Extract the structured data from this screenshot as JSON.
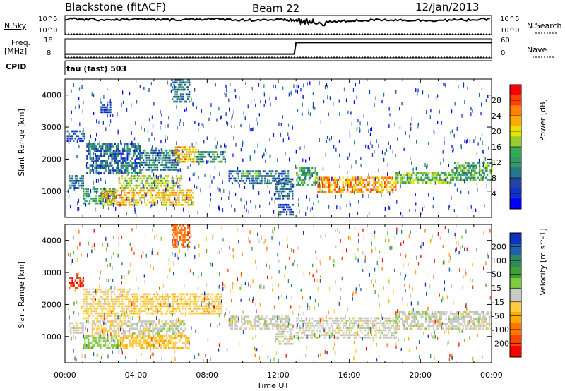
{
  "header": {
    "station": "Blackstone (fitACF)",
    "beam": "Beam 22",
    "date": "12/Jan/2013"
  },
  "sky_panel": {
    "left_label": "N.Sky",
    "right_label": "N.Search",
    "tick_top": "10^5",
    "tick_bottom": "10^0"
  },
  "freq_panel": {
    "left_label": "Freq.",
    "left_unit": "[MHz]",
    "right_label": "Nave",
    "left_ticks": [
      "18",
      "8"
    ],
    "right_ticks": [
      "60",
      "0"
    ]
  },
  "cpid": {
    "label": "CPID",
    "value": "tau (fast) 503"
  },
  "x_axis": {
    "label": "Time UT",
    "ticks": [
      "00:00",
      "04:00",
      "08:00",
      "12:00",
      "16:00",
      "20:00",
      "00:00"
    ]
  },
  "colorbars": {
    "power": {
      "label": "Power [dB]",
      "ticks": [
        "28",
        "24",
        "20",
        "16",
        "12",
        "8",
        "4"
      ],
      "colors": [
        "#ff0000",
        "#ff4000",
        "#ff8000",
        "#ffaa00",
        "#e8e000",
        "#99cc33",
        "#33aa55",
        "#339966",
        "#227788",
        "#2244aa",
        "#1133cc",
        "#0000ff"
      ]
    },
    "velocity": {
      "label": "Velocity [m s^-1]",
      "ticks": [
        "200",
        "100",
        "50",
        "15",
        "-15",
        "-50",
        "-100",
        "-200"
      ],
      "colors": [
        "#1030c0",
        "#2060b0",
        "#308860",
        "#40a030",
        "#80cc40",
        "#c8c8c8",
        "#ffcc44",
        "#ffaa00",
        "#ff7700",
        "#ff4400",
        "#ff0000"
      ]
    }
  },
  "chart_data": [
    {
      "type": "heatmap",
      "title": "Power",
      "xlabel": "Time UT",
      "ylabel": "Slant Range [km]",
      "xlim": [
        0,
        24
      ],
      "ylim": [
        180,
        4500
      ],
      "yticks": [
        1000,
        2000,
        3000,
        4000
      ],
      "colorbar_label": "Power [dB]",
      "colorbar_range": [
        0,
        32
      ],
      "regions": [
        {
          "t0": 0.2,
          "t1": 1.0,
          "r0": 1100,
          "r1": 1500,
          "v": 9
        },
        {
          "t0": 0.1,
          "t1": 1.1,
          "r0": 2550,
          "r1": 2900,
          "v": 6
        },
        {
          "t0": 1.0,
          "t1": 2.8,
          "r0": 650,
          "r1": 1100,
          "v": 12
        },
        {
          "t0": 2.0,
          "t1": 7.2,
          "r0": 600,
          "r1": 1050,
          "v": 22
        },
        {
          "t0": 3.0,
          "t1": 6.5,
          "r0": 1100,
          "r1": 1500,
          "v": 18
        },
        {
          "t0": 1.2,
          "t1": 4.2,
          "r0": 1550,
          "r1": 2500,
          "v": 9
        },
        {
          "t0": 4.2,
          "t1": 6.4,
          "r0": 1700,
          "r1": 2300,
          "v": 10
        },
        {
          "t0": 6.1,
          "t1": 7.4,
          "r0": 1900,
          "r1": 2400,
          "v": 22
        },
        {
          "t0": 7.4,
          "t1": 9.0,
          "r0": 1900,
          "r1": 2250,
          "v": 12
        },
        {
          "t0": 9.2,
          "t1": 12.6,
          "r0": 1250,
          "r1": 1650,
          "v": 9
        },
        {
          "t0": 10.0,
          "t1": 11.0,
          "r0": 1450,
          "r1": 1650,
          "v": 14
        },
        {
          "t0": 11.8,
          "t1": 12.8,
          "r0": 800,
          "r1": 1400,
          "v": 9
        },
        {
          "t0": 12.0,
          "t1": 12.8,
          "r0": 300,
          "r1": 600,
          "v": 6
        },
        {
          "t0": 13.0,
          "t1": 14.2,
          "r0": 1200,
          "r1": 1750,
          "v": 14
        },
        {
          "t0": 14.2,
          "t1": 18.6,
          "r0": 1000,
          "r1": 1450,
          "v": 24
        },
        {
          "t0": 18.6,
          "t1": 21.8,
          "r0": 1250,
          "r1": 1600,
          "v": 16
        },
        {
          "t0": 21.8,
          "t1": 24.0,
          "r0": 1350,
          "r1": 1900,
          "v": 14
        },
        {
          "t0": 6.0,
          "t1": 7.0,
          "r0": 3800,
          "r1": 4500,
          "v": 10
        },
        {
          "t0": 2.0,
          "t1": 2.6,
          "r0": 3500,
          "r1": 3800,
          "v": 6
        }
      ]
    },
    {
      "type": "heatmap",
      "title": "Velocity",
      "xlabel": "Time UT",
      "ylabel": "Slant Range [km]",
      "xlim": [
        0,
        24
      ],
      "ylim": [
        180,
        4500
      ],
      "yticks": [
        1000,
        2000,
        3000,
        4000
      ],
      "colorbar_label": "Velocity [m s^-1]",
      "colorbar_range": [
        -250,
        250
      ],
      "regions": [
        {
          "t0": 0.2,
          "t1": 1.0,
          "r0": 1150,
          "r1": 1450,
          "v": 0
        },
        {
          "t0": 0.2,
          "t1": 1.0,
          "r0": 2550,
          "r1": 2850,
          "v": -200
        },
        {
          "t0": 1.0,
          "t1": 3.0,
          "r0": 650,
          "r1": 1050,
          "v": 40
        },
        {
          "t0": 3.0,
          "t1": 7.0,
          "r0": 650,
          "r1": 1050,
          "v": -60
        },
        {
          "t0": 1.5,
          "t1": 3.5,
          "r0": 1050,
          "r1": 1500,
          "v": -30
        },
        {
          "t0": 3.5,
          "t1": 6.8,
          "r0": 1100,
          "r1": 1500,
          "v": 0
        },
        {
          "t0": 1.0,
          "t1": 3.6,
          "r0": 1600,
          "r1": 2500,
          "v": -40
        },
        {
          "t0": 3.6,
          "t1": 8.8,
          "r0": 1750,
          "r1": 2350,
          "v": -50
        },
        {
          "t0": 9.2,
          "t1": 12.6,
          "r0": 1250,
          "r1": 1650,
          "v": 0
        },
        {
          "t0": 11.8,
          "t1": 12.8,
          "r0": 800,
          "r1": 1400,
          "v": 0
        },
        {
          "t0": 13.0,
          "t1": 18.6,
          "r0": 1000,
          "r1": 1600,
          "v": 0
        },
        {
          "t0": 18.6,
          "t1": 24.0,
          "r0": 1250,
          "r1": 1800,
          "v": 0
        },
        {
          "t0": 6.0,
          "t1": 7.0,
          "r0": 3800,
          "r1": 4500,
          "v": -150
        }
      ]
    },
    {
      "type": "line",
      "title": "N.Sky / N.Search",
      "xlim": [
        0,
        24
      ],
      "series": [
        {
          "name": "N.Sky",
          "x": [
            0,
            2,
            4,
            6,
            8,
            10,
            12,
            13,
            14,
            16,
            18,
            20,
            22,
            24
          ],
          "values": [
            0.82,
            0.78,
            0.8,
            0.78,
            0.82,
            0.76,
            0.78,
            0.74,
            0.6,
            0.72,
            0.78,
            0.74,
            0.76,
            0.8
          ]
        },
        {
          "name": "N.Search",
          "x": [
            0,
            24
          ],
          "values": [
            0.02,
            0.02
          ]
        }
      ]
    },
    {
      "type": "line",
      "title": "Freq. / Nave",
      "xlim": [
        0,
        24
      ],
      "series": [
        {
          "name": "Freq.",
          "x": [
            0,
            12.9,
            13.0,
            24
          ],
          "values": [
            10,
            10,
            16,
            16
          ]
        },
        {
          "name": "Nave",
          "x": [
            0,
            24
          ],
          "values": [
            0,
            0
          ]
        }
      ]
    }
  ]
}
